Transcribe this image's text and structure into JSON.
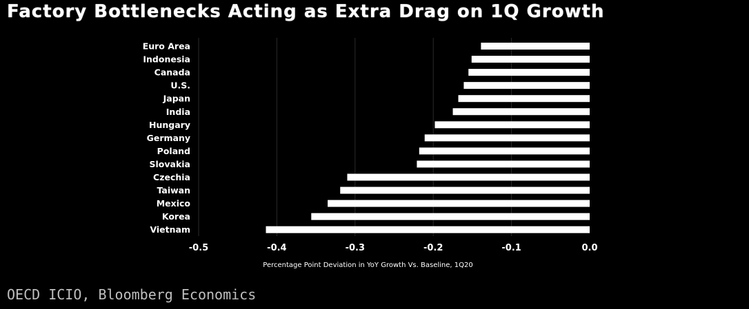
{
  "title": "Factory Bottlenecks Acting as Extra Drag on 1Q Growth",
  "source": "OECD ICIO, Bloomberg Economics",
  "chart_data": {
    "type": "bar",
    "orientation": "horizontal",
    "title": "Factory Bottlenecks Acting as Extra Drag on 1Q Growth",
    "xlabel": "Percentage Point Deviation in YoY Growth Vs. Baseline, 1Q20",
    "ylabel": "",
    "xlim": [
      -0.5,
      0.0
    ],
    "xticks": [
      -0.5,
      -0.4,
      -0.3,
      -0.2,
      -0.1,
      0.0
    ],
    "xtick_labels": [
      "-0.5",
      "-0.4",
      "-0.3",
      "-0.2",
      "-0.1",
      "0.0"
    ],
    "grid": "vertical",
    "bar_color": "#ffffff",
    "background": "#000000",
    "categories": [
      "Euro Area",
      "Indonesia",
      "Canada",
      "U.S.",
      "Japan",
      "India",
      "Hungary",
      "Germany",
      "Poland",
      "Slovakia",
      "Czechia",
      "Taiwan",
      "Mexico",
      "Korea",
      "Vietnam"
    ],
    "values": [
      -0.139,
      -0.151,
      -0.155,
      -0.161,
      -0.168,
      -0.175,
      -0.198,
      -0.211,
      -0.218,
      -0.221,
      -0.31,
      -0.319,
      -0.335,
      -0.356,
      -0.414
    ]
  }
}
